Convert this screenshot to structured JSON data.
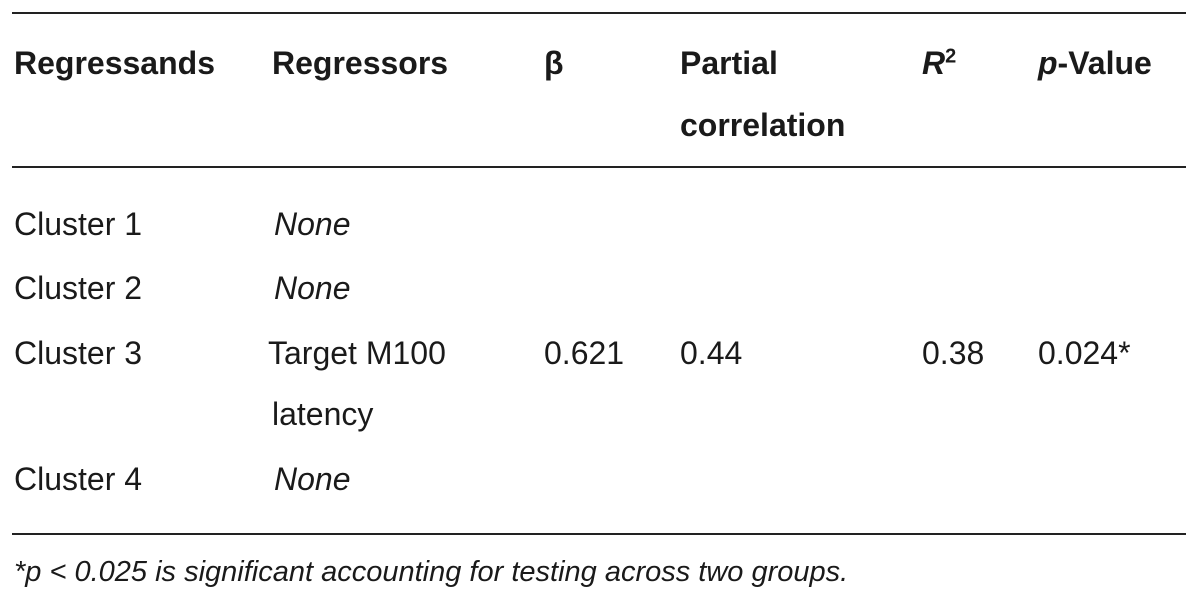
{
  "table": {
    "headers": {
      "regressands": "Regressands",
      "regressors": "Regressors",
      "beta": "β",
      "partial_line1": "Partial",
      "partial_line2": "correlation",
      "r2_base": "R",
      "r2_sup": "2",
      "pvalue_p": "p",
      "pvalue_rest": "-Value"
    },
    "rows": [
      {
        "regressand": "Cluster 1",
        "regressor": "None",
        "beta": "",
        "partial": "",
        "r2": "",
        "p": ""
      },
      {
        "regressand": "Cluster 2",
        "regressor": "None",
        "beta": "",
        "partial": "",
        "r2": "",
        "p": ""
      },
      {
        "regressand": "Cluster 3",
        "regressor_line1": "Target M100",
        "regressor_line2": "latency",
        "beta": "0.621",
        "partial": "0.44",
        "r2": "0.38",
        "p": "0.024*"
      },
      {
        "regressand": "Cluster 4",
        "regressor": "None",
        "beta": "",
        "partial": "",
        "r2": "",
        "p": ""
      }
    ]
  },
  "footnote": "*p < 0.025 is significant accounting for testing across two groups."
}
